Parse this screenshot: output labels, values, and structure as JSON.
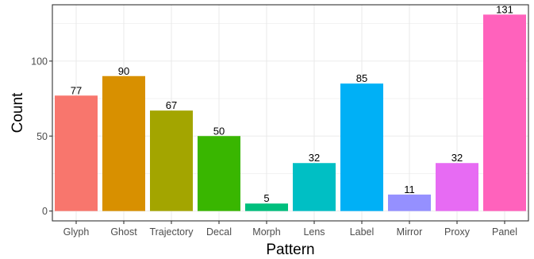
{
  "chart_data": {
    "type": "bar",
    "categories": [
      "Glyph",
      "Ghost",
      "Trajectory",
      "Decal",
      "Morph",
      "Lens",
      "Label",
      "Mirror",
      "Proxy",
      "Panel"
    ],
    "values": [
      77,
      90,
      67,
      50,
      5,
      32,
      85,
      11,
      32,
      131
    ],
    "colors": [
      "#F8766D",
      "#D89000",
      "#A3A500",
      "#39B600",
      "#00BF7D",
      "#00BFC4",
      "#00B0F6",
      "#9590FF",
      "#E76BF3",
      "#FF62BC"
    ],
    "xlabel": "Pattern",
    "ylabel": "Count",
    "ylim": [
      -6.55,
      137.55
    ],
    "yticks": [
      0,
      50,
      100
    ],
    "grid": true,
    "legend": "none"
  }
}
